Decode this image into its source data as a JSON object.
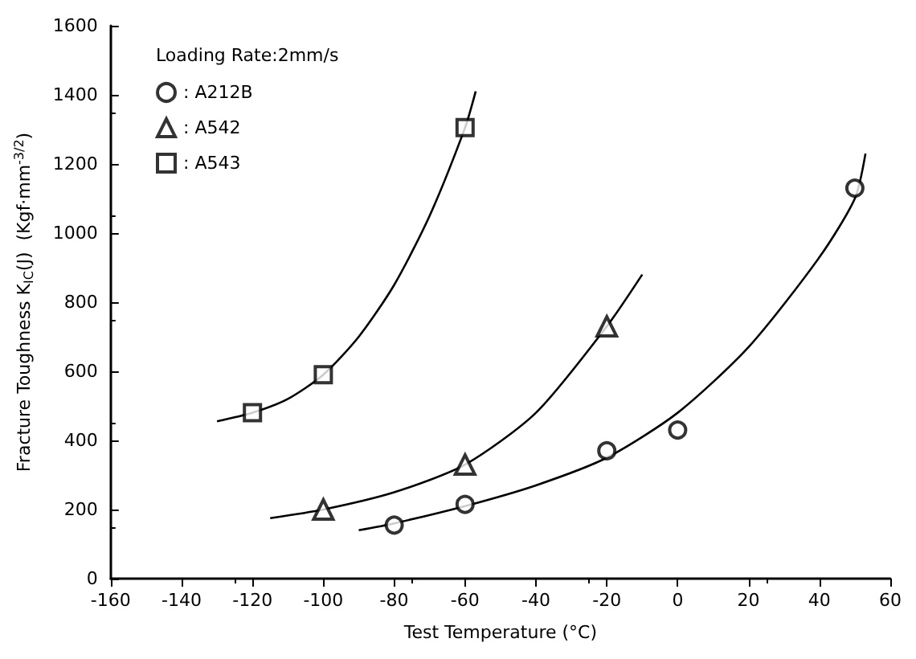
{
  "chart_data": {
    "type": "scatter",
    "xlabel": "Test Temperature (°C)",
    "ylabel": "Fracture Toughness K$_{IC}$(J)  (Kgf·mm$^{-3/2}$)",
    "legend_title": "Loading Rate:2mm/s",
    "legend": "top left",
    "grid": false,
    "xlim": [
      -160,
      60
    ],
    "xticks": [
      -160,
      -140,
      -120,
      -100,
      -80,
      -60,
      -40,
      -20,
      0,
      20,
      40,
      60
    ],
    "ylim": [
      0,
      1600
    ],
    "yticks": [
      0,
      200,
      400,
      600,
      800,
      1000,
      1200,
      1400,
      1600
    ],
    "series": [
      {
        "name": ": A212B",
        "color": "#000000",
        "marker": "circle",
        "x": [
          -80,
          -60,
          -20,
          0,
          50
        ],
        "values": [
          155,
          215,
          370,
          430,
          1130
        ]
      },
      {
        "name": ": A542",
        "color": "#000000",
        "marker": "triangle",
        "x": [
          -100,
          -60,
          -20
        ],
        "values": [
          200,
          330,
          730
        ]
      },
      {
        "name": ": A543",
        "color": "#000000",
        "marker": "square",
        "x": [
          -120,
          -100,
          -60
        ],
        "values": [
          480,
          590,
          1305
        ]
      },
      {
        "type": "line",
        "color": "#000000",
        "marker": "none",
        "x": [
          -90,
          -80,
          -60,
          -40,
          -20,
          0,
          20,
          40,
          50,
          53
        ],
        "values": [
          140,
          160,
          210,
          270,
          350,
          480,
          670,
          930,
          1100,
          1230
        ]
      },
      {
        "type": "line",
        "color": "#000000",
        "marker": "none",
        "x": [
          -115,
          -100,
          -80,
          -60,
          -40,
          -20,
          -10
        ],
        "values": [
          175,
          200,
          250,
          330,
          480,
          730,
          880
        ]
      },
      {
        "type": "line",
        "color": "#000000",
        "marker": "none",
        "x": [
          -130,
          -120,
          -110,
          -100,
          -90,
          -80,
          -70,
          -60,
          -57
        ],
        "values": [
          455,
          480,
          520,
          590,
          700,
          850,
          1050,
          1305,
          1410
        ]
      }
    ]
  }
}
